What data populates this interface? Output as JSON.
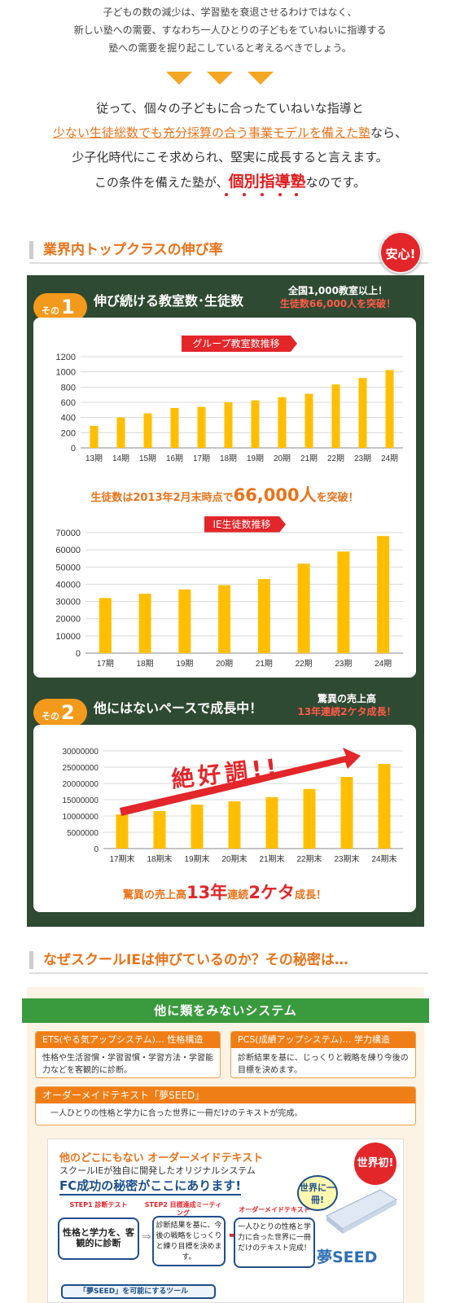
{
  "intro": {
    "lines": [
      "子どもの数の減少は、学習塾を衰退させるわけではなく、",
      "新しい塾への需要、すなわち一人ひとりの子どもをていねいに指導する",
      "塾への需要を掘り起こしていると考えるべきでしょう。"
    ]
  },
  "claim": {
    "line1": "従って、個々の子どもに合ったていねいな指導と",
    "line2_highlight": "少ない生徒総数でも充分採算の合う事業モデルを備えた塾",
    "line2_tail": "なら、",
    "line3": "少子化時代にこそ求められ、堅実に成長すると言えます。",
    "line4_pre": "この条件を備えた塾が、",
    "line4_red": "個別指導塾",
    "line4_post": "なのです。"
  },
  "section1": {
    "title": "業界内トップクラスの伸び率",
    "badge": "安心!"
  },
  "part1": {
    "badge_prefix": "その",
    "badge_num": "1",
    "heading": "伸び続ける教室数･生徒数",
    "note_line1": "全国1,000教室以上！",
    "note_line2": "生徒数66,000人を突破！",
    "callout_pre": "生徒数は2013年2月末時点で",
    "callout_big": "66,000人",
    "callout_post": "を突破！"
  },
  "part2": {
    "badge_prefix": "その",
    "badge_num": "2",
    "heading": "他にはないペースで成長中！",
    "note_line1": "驚異の売上高",
    "note_line2": "13年連続2ケタ成長！",
    "zekko": "絶好調!!",
    "callout_a": "驚異の売上高",
    "callout_b": "13年",
    "callout_c": "連続",
    "callout_d": "2ケタ",
    "callout_e": "成長！"
  },
  "chart_data": [
    {
      "type": "bar",
      "title": "グループ教室数推移",
      "categories": [
        "13期",
        "14期",
        "15期",
        "16期",
        "17期",
        "18期",
        "19期",
        "20期",
        "21期",
        "22期",
        "23期",
        "24期"
      ],
      "values": [
        290,
        400,
        455,
        525,
        540,
        600,
        625,
        668,
        712,
        835,
        920,
        1025
      ],
      "ylim": [
        0,
        1200
      ],
      "yticks": [
        0,
        200,
        400,
        600,
        800,
        1000,
        1200
      ],
      "color": "#ffbf00",
      "grid": true
    },
    {
      "type": "bar",
      "title": "IE生徒数推移",
      "categories": [
        "17期",
        "18期",
        "19期",
        "20期",
        "21期",
        "22期",
        "23期",
        "24期"
      ],
      "values": [
        32000,
        34500,
        37000,
        39500,
        43000,
        52000,
        59000,
        68000
      ],
      "ylim": [
        0,
        70000
      ],
      "yticks": [
        0,
        10000,
        20000,
        30000,
        40000,
        50000,
        60000,
        70000
      ],
      "color": "#ffbf00",
      "grid": true
    },
    {
      "type": "bar",
      "title": "",
      "categories": [
        "17期末",
        "18期末",
        "19期末",
        "20期末",
        "21期末",
        "22期末",
        "23期末",
        "24期末"
      ],
      "values": [
        10500000,
        11500000,
        13500000,
        14500000,
        15800000,
        18300000,
        22000000,
        26000000
      ],
      "ylim": [
        0,
        30000000
      ],
      "yticks": [
        0,
        5000000,
        10000000,
        15000000,
        20000000,
        25000000,
        30000000
      ],
      "color": "#ffbf00",
      "grid": true
    }
  ],
  "section2": {
    "title": "なぜスクールIEは伸びているのか？その秘密は…"
  },
  "system": {
    "banner": "他に類をみないシステム",
    "ets_title": "ETS(やる気アップシステム)… 性格構造",
    "ets_body": "性格や生活習慣・学習習慣・学習方法・学習能力などを客観的に診断。",
    "pcs_title": "PCS(成績アップシステム)… 学力構造",
    "pcs_body": "診断結果を基に、じっくりと戦略を練り今後の目標を決めます。",
    "order_title": "オーダーメイドテキスト「夢SEED」",
    "order_body": "一人ひとりの性格と学力に合った世界に一冊だけのテキストが完成。"
  },
  "seed": {
    "title": "他のどこにもない オーダーメイドテキスト",
    "subtitle": "スクールIEが独自に開発したオリジナルシステム",
    "headline": "FC成功の秘密がここにあります!",
    "badge": "世界初!",
    "badge2": "世界に一冊!",
    "step1_tag": "STEP1 診断テスト",
    "step1_body": "性格と学力を、客観的に診断",
    "step2_tag": "STEP2 目標達成ミーティング",
    "step2_body": "診断結果を基に、今後の戦略をじっくりと練り目標を決めます。",
    "step3_tag": "オーダーメイドテキスト",
    "step3_body": "一人ひとりの性格と学力に合った世界に一冊だけのテキスト完成！",
    "logo": "夢SEED",
    "tool": "「夢SEED」を可能にするツール"
  },
  "colors": {
    "accent_orange": "#e8731a",
    "red": "#e2262a",
    "board_green": "#2f4a32",
    "bar_yellow": "#ffbf00",
    "banner_green": "#3a9a3e"
  }
}
